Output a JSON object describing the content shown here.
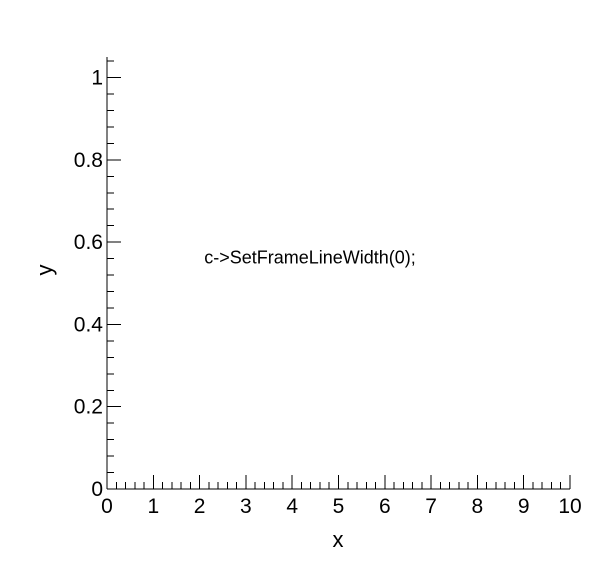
{
  "chart_data": {
    "type": "scatter",
    "title": "",
    "xlabel": "x",
    "ylabel": "y",
    "xlim": [
      0,
      10
    ],
    "ylim": [
      0,
      1.05
    ],
    "x_ticks": [
      "0",
      "1",
      "2",
      "3",
      "4",
      "5",
      "6",
      "7",
      "8",
      "9",
      "10"
    ],
    "y_ticks": [
      "0",
      "0.2",
      "0.4",
      "0.6",
      "0.8",
      "1"
    ],
    "series": [],
    "grid": false,
    "frame_line_width": 0,
    "annotations": [
      {
        "text": "c->SetFrameLineWidth(0);",
        "x": 2.1,
        "y": 0.56
      }
    ]
  }
}
